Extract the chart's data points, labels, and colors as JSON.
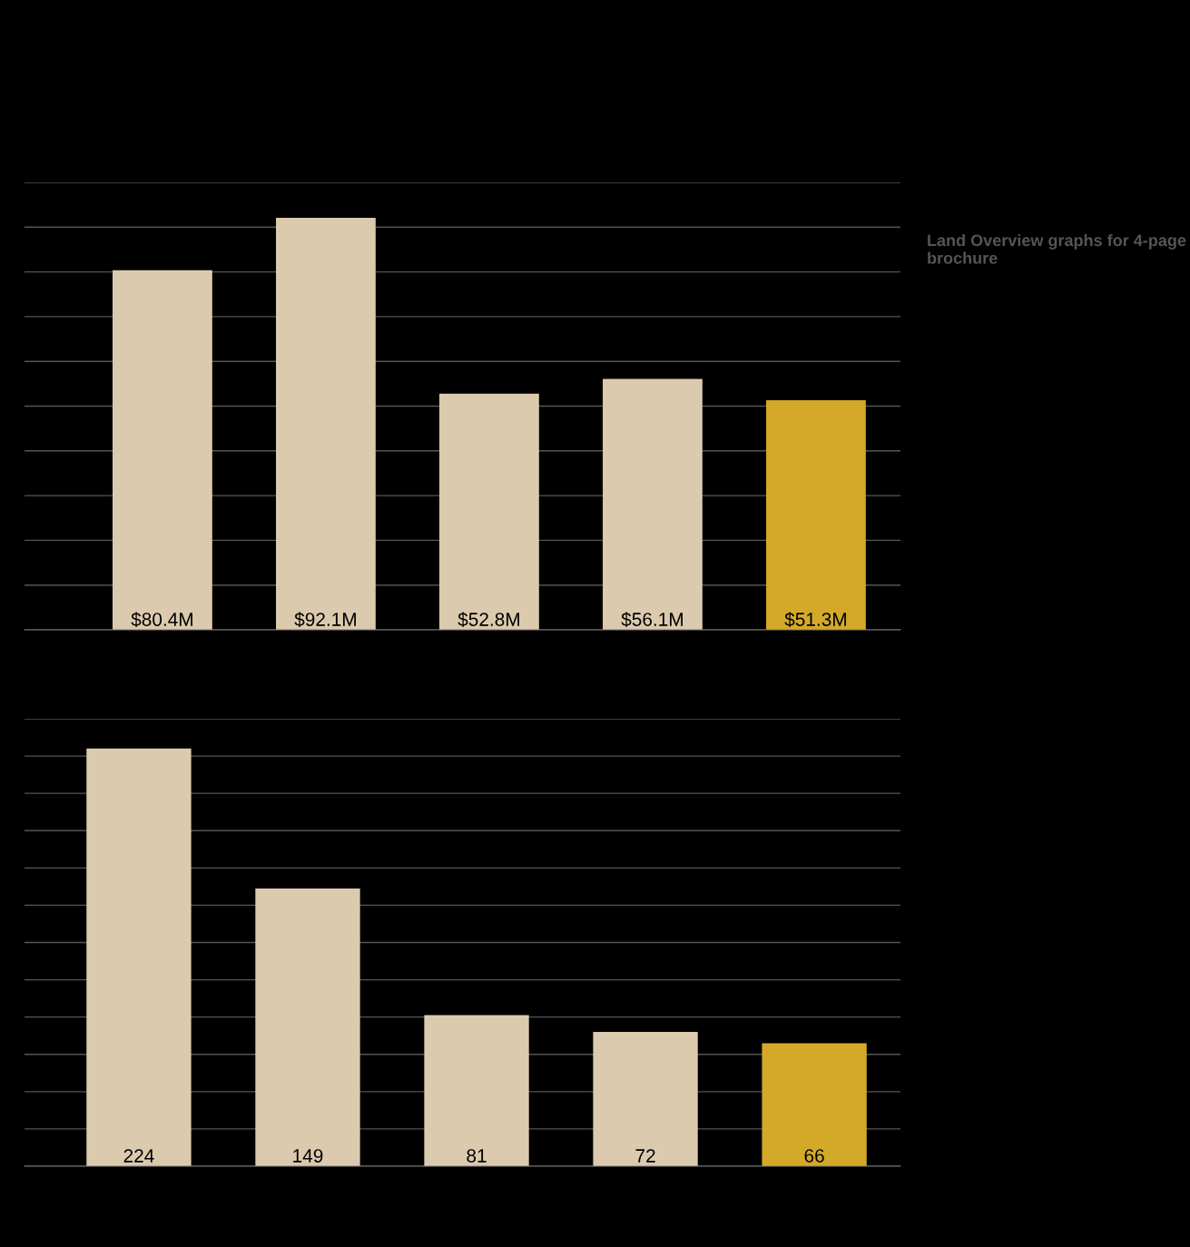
{
  "chart_data": [
    {
      "type": "bar",
      "categories": [
        null,
        null,
        null,
        null,
        null
      ],
      "values": [
        80.4,
        92.1,
        52.8,
        56.1,
        51.3
      ],
      "value_labels": [
        "$80.4M",
        "$92.1M",
        "$52.8M",
        "$56.1M",
        "$51.3M"
      ],
      "colors": [
        "#dbcaae",
        "#dbcaae",
        "#dbcaae",
        "#dbcaae",
        "#d4a92a"
      ],
      "ylim": [
        0,
        100
      ],
      "yticks": [
        {
          "value": 0,
          "label": null
        },
        {
          "value": 10,
          "label": null
        },
        {
          "value": 20,
          "label": null
        },
        {
          "value": 30,
          "label": null
        },
        {
          "value": 40,
          "label": null
        },
        {
          "value": 50,
          "label": null
        },
        {
          "value": 60,
          "label": null
        },
        {
          "value": 70,
          "label": null
        },
        {
          "value": 80,
          "label": null
        },
        {
          "value": 90,
          "label": null
        },
        {
          "value": 100,
          "label": null
        }
      ],
      "grid": "y",
      "annotations": [
        "Land Overview graphs for 4-page brochure"
      ]
    },
    {
      "type": "bar",
      "categories": [
        null,
        null,
        null,
        null,
        null
      ],
      "values": [
        224,
        149,
        81,
        72,
        66
      ],
      "data_labels": true,
      "colors": [
        "#dbcaae",
        "#dbcaae",
        "#dbcaae",
        "#dbcaae",
        "#d4a92a"
      ],
      "ylim": [
        0,
        240
      ],
      "yticks": [
        {
          "value": 0,
          "label": null
        },
        {
          "value": 20,
          "label": null
        },
        {
          "value": 40,
          "label": null
        },
        {
          "value": 60,
          "label": null
        },
        {
          "value": 80,
          "label": null
        },
        {
          "value": 100,
          "label": null
        },
        {
          "value": 120,
          "label": null
        },
        {
          "value": 140,
          "label": null
        },
        {
          "value": 160,
          "label": null
        },
        {
          "value": 180,
          "label": null
        },
        {
          "value": 200,
          "label": null
        },
        {
          "value": 220,
          "label": null
        },
        {
          "value": 240,
          "label": null
        }
      ],
      "grid": "y"
    }
  ]
}
